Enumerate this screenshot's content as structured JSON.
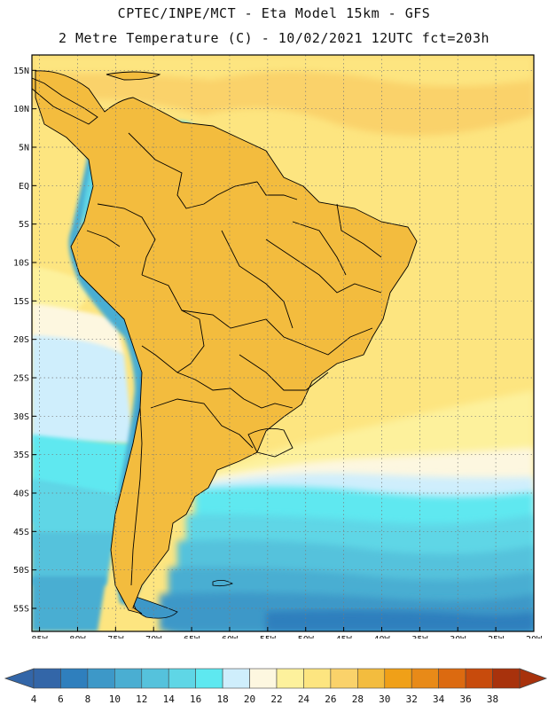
{
  "header": {
    "line1": "CPTEC/INPE/MCT -  Eta Model 15km - GFS",
    "line2": "2 Metre Temperature (C) - 10/02/2021 12UTC fct=203h"
  },
  "map": {
    "lat_labels": [
      "15N",
      "10N",
      "5N",
      "EQ",
      "5S",
      "10S",
      "15S",
      "20S",
      "25S",
      "30S",
      "35S",
      "40S",
      "45S",
      "50S",
      "55S"
    ],
    "lon_labels": [
      "85W",
      "80W",
      "75W",
      "70W",
      "65W",
      "60W",
      "55W",
      "50W",
      "45W",
      "40W",
      "35W",
      "30W",
      "25W",
      "20W"
    ],
    "lat_range": [
      -58,
      17
    ],
    "lon_range": [
      -86,
      -20
    ]
  },
  "legend": {
    "labels": [
      "4",
      "6",
      "8",
      "10",
      "12",
      "14",
      "16",
      "18",
      "20",
      "22",
      "24",
      "26",
      "28",
      "30",
      "32",
      "34",
      "36",
      "38"
    ],
    "colors": [
      "#3366a8",
      "#2f7fbd",
      "#3d98c8",
      "#4aaed2",
      "#55c2dc",
      "#5fd6e6",
      "#5ee8f0",
      "#cfeefc",
      "#fdf7e0",
      "#fdf19c",
      "#fde580",
      "#fad26a",
      "#f3bc3e",
      "#f0a018",
      "#e88a18",
      "#dc6a10",
      "#c84b0c",
      "#a8320c"
    ]
  }
}
